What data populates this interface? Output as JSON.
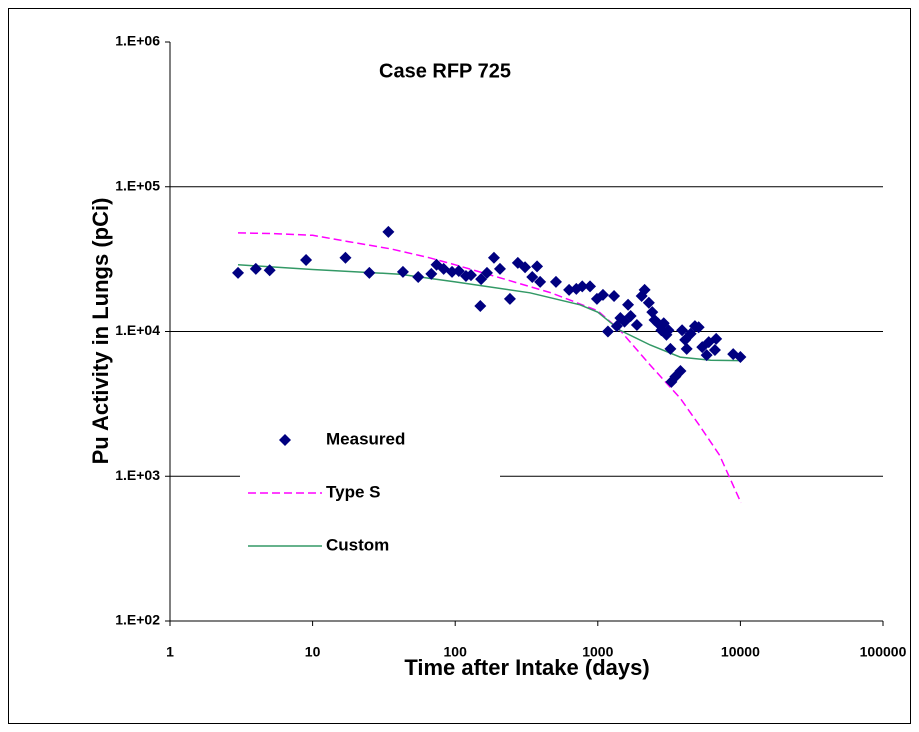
{
  "chart_data": {
    "type": "scatter-line",
    "annotation": "Case RFP 725",
    "x_label": "Time after Intake (days)",
    "y_label": "Pu Activity in Lungs (pCi)",
    "xlog": true,
    "ylog": true,
    "grid": true,
    "xlim": [
      1,
      100000
    ],
    "xticks": [
      1,
      10,
      100,
      1000,
      10000,
      100000
    ],
    "ylim": [
      100,
      1000000
    ],
    "yticks": [
      {
        "value": 100,
        "label": "1.E+02"
      },
      {
        "value": 1000,
        "label": "1.E+03"
      },
      {
        "value": 10000,
        "label": "1.E+04"
      },
      {
        "value": 100000,
        "label": "1.E+05"
      },
      {
        "value": 1000000,
        "label": "1.E+06"
      }
    ],
    "series": [
      {
        "name": "Measured",
        "type": "scatter",
        "color": "#000080",
        "x": [
          3,
          4,
          5,
          9,
          17,
          25,
          34,
          43,
          55,
          68,
          74,
          83,
          95,
          106,
          119,
          129,
          150,
          152,
          167,
          187,
          206,
          242,
          275,
          309,
          347,
          375,
          394,
          509,
          629,
          707,
          778,
          882,
          986,
          1087,
          1178,
          1300,
          1360,
          1440,
          1540,
          1630,
          1700,
          1880,
          2030,
          2130,
          2280,
          2410,
          2500,
          2640,
          2790,
          2900,
          3030,
          3130,
          3230,
          3280,
          3500,
          3800,
          3900,
          4100,
          4200,
          4480,
          4800,
          5100,
          5400,
          5800,
          6000,
          6630,
          6760,
          8900,
          10000
        ],
        "values": [
          25400,
          27100,
          26500,
          31200,
          32300,
          25400,
          48800,
          25800,
          23800,
          25000,
          28900,
          27100,
          25800,
          26200,
          24200,
          24500,
          15000,
          23000,
          25400,
          32300,
          27100,
          16800,
          29800,
          27800,
          23800,
          28200,
          22000,
          22000,
          19400,
          19700,
          20500,
          20500,
          16800,
          17900,
          10000,
          17600,
          10900,
          12400,
          11700,
          15300,
          12800,
          11100,
          17600,
          19400,
          15800,
          13600,
          12000,
          11400,
          10200,
          11400,
          9500,
          10200,
          7580,
          4490,
          4880,
          5330,
          10200,
          8760,
          7580,
          9650,
          10900,
          10700,
          7800,
          6870,
          8440,
          7450,
          8900,
          6980,
          6660
        ]
      },
      {
        "name": "Type S",
        "type": "line",
        "dash": true,
        "color": "#ff00ff",
        "x": [
          3,
          5,
          10,
          18,
          36,
          66,
          100,
          206,
          470,
          1000,
          1430,
          2330,
          3780,
          5200,
          7140,
          10100
        ],
        "values": [
          48000,
          47500,
          46200,
          41700,
          37100,
          32300,
          28900,
          23500,
          18500,
          13900,
          10200,
          5860,
          3460,
          2220,
          1400,
          655
        ]
      },
      {
        "name": "Custom",
        "type": "line",
        "dash": false,
        "color": "#339966",
        "x": [
          3,
          10,
          41,
          100,
          334,
          750,
          1000,
          1430,
          2330,
          3780,
          6200,
          10000
        ],
        "values": [
          28900,
          26800,
          24900,
          22000,
          18500,
          15300,
          13600,
          10200,
          8070,
          6660,
          6330,
          6290
        ]
      }
    ]
  }
}
